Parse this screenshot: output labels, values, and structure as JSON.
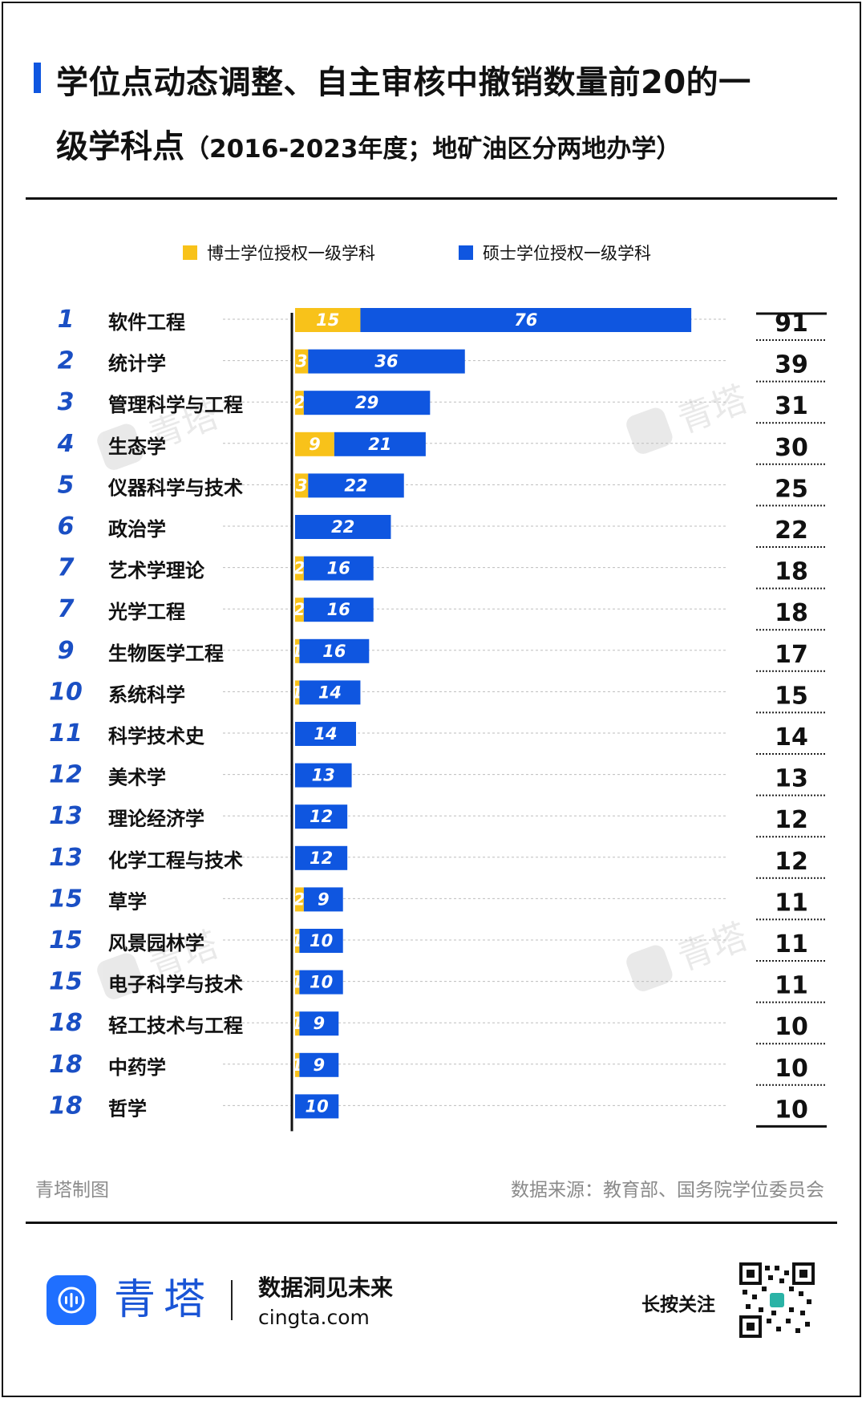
{
  "title": {
    "line1": "学位点动态调整、自主审核中撤销数量前20的一",
    "line2_main": "级学科点",
    "line2_sub": "（2016-2023年度；地矿油区分两地办学）"
  },
  "legend": {
    "doctor": "博士学位授权一级学科",
    "master": "硕士学位授权一级学科"
  },
  "colors": {
    "doctor": "#f8c21a",
    "master": "#0f56e0",
    "rank": "#1a4fc4",
    "accent": "#0f56e0"
  },
  "chart_data": {
    "type": "bar",
    "orientation": "horizontal",
    "stacked": true,
    "series": [
      {
        "name": "博士学位授权一级学科",
        "values": [
          15,
          3,
          2,
          9,
          3,
          null,
          2,
          2,
          1,
          1,
          null,
          null,
          null,
          null,
          2,
          1,
          1,
          1,
          1,
          null
        ]
      },
      {
        "name": "硕士学位授权一级学科",
        "values": [
          76,
          36,
          29,
          21,
          22,
          22,
          16,
          16,
          16,
          14,
          14,
          13,
          12,
          12,
          9,
          10,
          10,
          9,
          9,
          10
        ]
      }
    ],
    "ranks": [
      "1",
      "2",
      "3",
      "4",
      "5",
      "6",
      "7",
      "7",
      "9",
      "10",
      "11",
      "12",
      "13",
      "13",
      "15",
      "15",
      "15",
      "18",
      "18",
      "18"
    ],
    "categories": [
      "软件工程",
      "统计学",
      "管理科学与工程",
      "生态学",
      "仪器科学与技术",
      "政治学",
      "艺术学理论",
      "光学工程",
      "生物医学工程",
      "系统科学",
      "科学技术史",
      "美术学",
      "理论经济学",
      "化学工程与技术",
      "草学",
      "风景园林学",
      "电子科学与技术",
      "轻工技术与工程",
      "中药学",
      "哲学"
    ],
    "totals": [
      91,
      39,
      31,
      30,
      25,
      22,
      18,
      18,
      17,
      15,
      14,
      13,
      12,
      12,
      11,
      11,
      11,
      10,
      10,
      10
    ],
    "xlim": [
      0,
      91
    ],
    "legend_position": "top"
  },
  "footer": {
    "maker": "青塔制图",
    "source": "数据来源：教育部、国务院学位委员会"
  },
  "brand": {
    "name": "青塔",
    "slogan": "数据洞见未来",
    "site": "cingta.com",
    "follow": "长按关注",
    "watermark": "青塔"
  }
}
